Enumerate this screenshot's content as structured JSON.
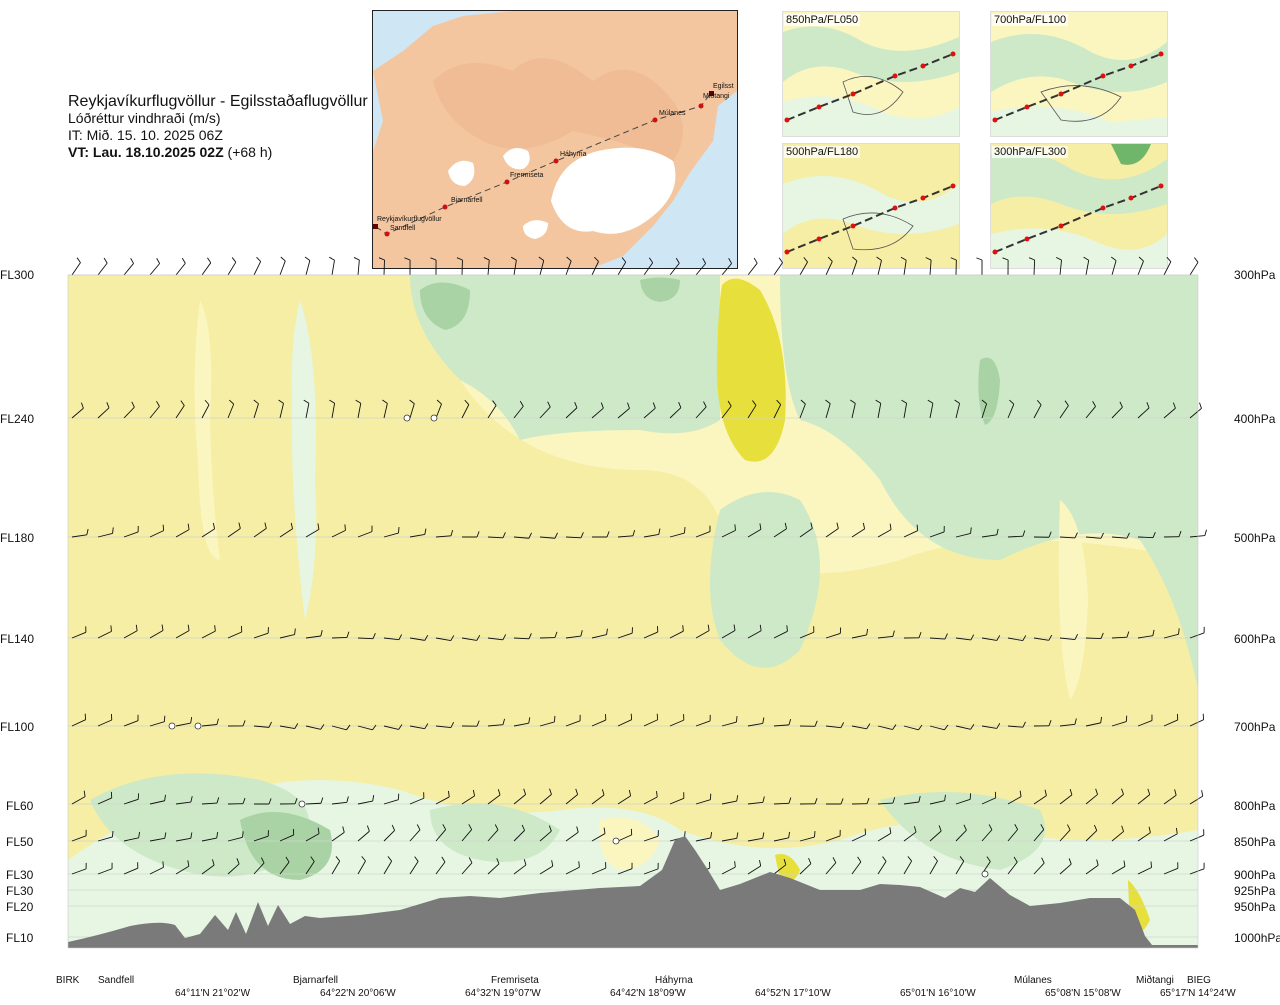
{
  "header": {
    "route_title": "Reykjavíkurflugvöllur - Egilsstaðaflugvöllur",
    "parameter": "Lóðréttur vindhraði (m/s)",
    "issue_time": "IT: Mið. 15. 10. 2025 06Z",
    "valid_label": "VT: Lau. 18.10.2025 02Z",
    "valid_offset": "(+68 h)"
  },
  "route_map": {
    "waypoints": [
      "Reykjavíkurflugvöllur",
      "Sandfell",
      "Bjarnarfell",
      "Fremriseta",
      "Háhyrna",
      "Múlanes",
      "Miðtangi",
      "Egilsst"
    ]
  },
  "level_maps": [
    {
      "label": "850hPa/FL050"
    },
    {
      "label": "700hPa/FL100"
    },
    {
      "label": "500hPa/FL180"
    },
    {
      "label": "300hPa/FL300"
    }
  ],
  "flight_levels": [
    "FL300",
    "FL240",
    "FL180",
    "FL140",
    "FL100",
    "FL60",
    "FL50",
    "FL30",
    "FL30",
    "FL20",
    "FL10"
  ],
  "pressure_levels": [
    "300hPa",
    "400hPa",
    "500hPa",
    "600hPa",
    "700hPa",
    "800hPa",
    "850hPa",
    "900hPa",
    "925hPa",
    "950hPa",
    "1000hPa"
  ],
  "locations": [
    "BIRK",
    "Sandfell",
    "Bjarnarfell",
    "Fremriseta",
    "Háhyrna",
    "Múlanes",
    "Miðtangi",
    "BIEG"
  ],
  "coordinates": [
    "64°11'N 21°02'W",
    "64°22'N 20°06'W",
    "64°32'N 19°07'W",
    "64°42'N 18°09'W",
    "64°52'N 17°10'W",
    "65°01'N 16°10'W",
    "65°08'N 15°08'W",
    "65°17'N 14°24'W"
  ],
  "colors": {
    "pale_yellow": "#fbf6c0",
    "yellow": "#f5eea4",
    "bright_yellow": "#e6df3c",
    "pale_green": "#e6f6e2",
    "green": "#cde9c8",
    "dark_green": "#a9d3a4",
    "terrain": "#7a7a7a",
    "land": "#f3c6a0",
    "water": "#cfe6f5"
  }
}
